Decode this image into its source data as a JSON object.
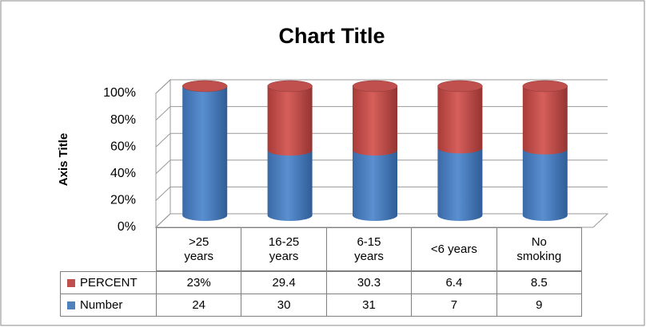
{
  "chart_data": {
    "type": "bar3d_stacked100",
    "title": "Chart Title",
    "y_axis_title": "Axis Title",
    "categories": [
      ">25 years",
      "16-25 years",
      "6-15 years",
      "<6 years",
      "No smoking"
    ],
    "series": [
      {
        "name": "PERCENT",
        "color": "#c0504d",
        "values": [
          null,
          29.4,
          30.3,
          6.4,
          8.5
        ],
        "value_labels": [
          "23%",
          "29.4",
          "30.3",
          "6.4",
          "8.5"
        ]
      },
      {
        "name": "Number",
        "color": "#4f81bd",
        "values": [
          24,
          30,
          31,
          7,
          9
        ]
      }
    ],
    "ylim": [
      0,
      100
    ],
    "yticks": [
      {
        "value": 0,
        "label": "0%"
      },
      {
        "value": 20,
        "label": "20%"
      },
      {
        "value": 40,
        "label": "40%"
      },
      {
        "value": 60,
        "label": "60%"
      },
      {
        "value": 80,
        "label": "80%"
      },
      {
        "value": 100,
        "label": "100%"
      }
    ],
    "grid": true
  }
}
